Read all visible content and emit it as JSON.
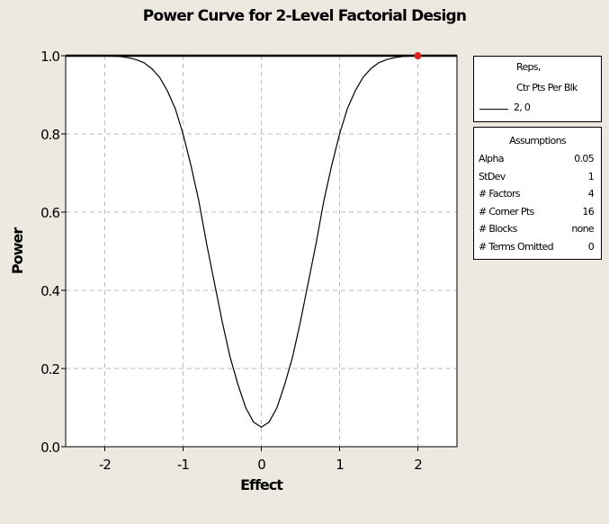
{
  "chart_data": {
    "type": "line",
    "title": "Power Curve for 2-Level Factorial Design",
    "xlabel": "Effect",
    "ylabel": "Power",
    "xlim": [
      -2.5,
      2.5
    ],
    "ylim": [
      0,
      1
    ],
    "xticks": [
      "-2",
      "-1",
      "0",
      "1",
      "2"
    ],
    "xtick_values": [
      -2,
      -1,
      0,
      1,
      2
    ],
    "yticks": [
      "0.0",
      "0.2",
      "0.4",
      "0.6",
      "0.8",
      "1.0"
    ],
    "ytick_values": [
      0,
      0.2,
      0.4,
      0.6,
      0.8,
      1.0
    ],
    "grid": true,
    "series": [
      {
        "name": "2, 0",
        "color": "#000000",
        "x": [
          -1.9,
          -1.8,
          -1.7,
          -1.6,
          -1.5,
          -1.4,
          -1.3,
          -1.2,
          -1.1,
          -1.0,
          -0.9,
          -0.8,
          -0.7,
          -0.6,
          -0.5,
          -0.4,
          -0.3,
          -0.2,
          -0.1,
          0,
          0.1,
          0.2,
          0.3,
          0.4,
          0.5,
          0.6,
          0.7,
          0.8,
          0.9,
          1.0,
          1.1,
          1.2,
          1.3,
          1.4,
          1.5,
          1.6,
          1.7,
          1.8,
          1.9
        ],
        "y": [
          0.999,
          0.998,
          0.995,
          0.99,
          0.982,
          0.967,
          0.945,
          0.91,
          0.865,
          0.8,
          0.72,
          0.63,
          0.52,
          0.42,
          0.32,
          0.23,
          0.16,
          0.1,
          0.063,
          0.05,
          0.063,
          0.1,
          0.16,
          0.23,
          0.32,
          0.42,
          0.52,
          0.63,
          0.72,
          0.8,
          0.865,
          0.91,
          0.945,
          0.967,
          0.982,
          0.99,
          0.995,
          0.998,
          0.999
        ]
      }
    ],
    "highlight_point": {
      "x": 2,
      "y": 1.0,
      "color": "#e02020"
    },
    "legend": {
      "placement": "right",
      "header": [
        "Reps,",
        "Ctr Pts Per Blk"
      ],
      "entry": "2, 0"
    },
    "assumptions": {
      "title": "Assumptions",
      "rows": [
        {
          "label": "Alpha",
          "value": "0.05"
        },
        {
          "label": "StDev",
          "value": "1"
        },
        {
          "label": "# Factors",
          "value": "4"
        },
        {
          "label": "# Corner Pts",
          "value": "16"
        },
        {
          "label": "# Blocks",
          "value": "none"
        },
        {
          "label": "# Terms Omitted",
          "value": "0"
        }
      ]
    }
  }
}
